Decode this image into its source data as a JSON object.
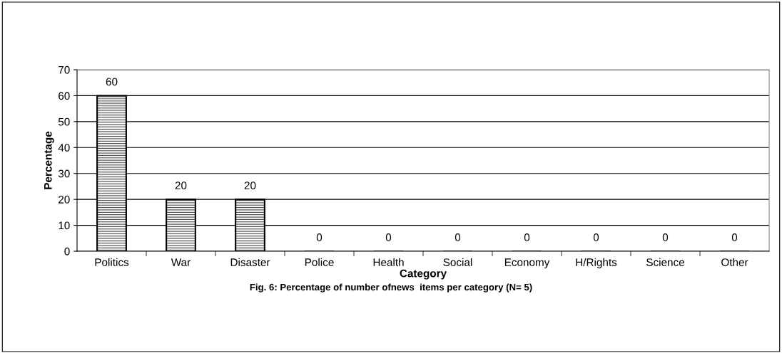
{
  "chart_data": {
    "type": "bar",
    "xlabel": "Category",
    "ylabel": "Percentage",
    "categories": [
      "Politics",
      "War",
      "Disaster",
      "Police",
      "Health",
      "Social",
      "Economy",
      "H/Rights",
      "Science",
      "Other"
    ],
    "values": [
      60,
      20,
      20,
      0,
      0,
      0,
      0,
      0,
      0,
      0
    ],
    "color": "#000000",
    "ylim": [
      0,
      70
    ],
    "yticks": [
      0,
      10,
      20,
      30,
      40,
      50,
      60,
      70
    ],
    "grid": "y",
    "data_labels": true,
    "annotations": [
      "Fig. 6: Percentage of number ofnews  items per category (N= 5)"
    ]
  }
}
